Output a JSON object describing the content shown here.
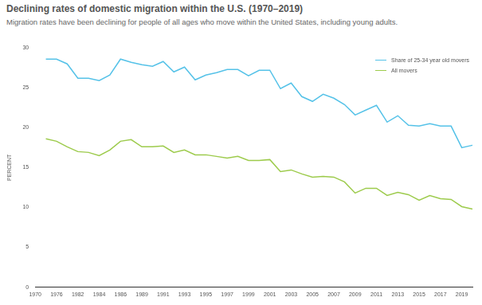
{
  "chart_data": {
    "type": "line",
    "title": "Declining rates of domestic migration within the U.S. (1970–2019)",
    "subtitle": "Migration rates have been declining for people of all ages who move within the United States, including young adults.",
    "y_label": "PERCENT",
    "categories": [
      "1970",
      null,
      "1976",
      null,
      "1982",
      null,
      "1984",
      null,
      "1986",
      null,
      "1989",
      null,
      "1991",
      null,
      "1993",
      null,
      "1995",
      null,
      "1997",
      null,
      "1999",
      null,
      "2001",
      null,
      "2003",
      null,
      "2005",
      null,
      "2007",
      null,
      "2009",
      null,
      "2011",
      null,
      "2013",
      null,
      "2015",
      null,
      "2017",
      null,
      "2019",
      null
    ],
    "series": [
      {
        "name": "Share of 25-34 year old movers",
        "color": "#55c2e8",
        "values": [
          null,
          28.6,
          28.6,
          28.0,
          26.2,
          26.2,
          25.9,
          26.6,
          28.6,
          28.2,
          27.9,
          27.7,
          28.3,
          27.0,
          27.6,
          26.0,
          26.6,
          26.9,
          27.3,
          27.3,
          26.5,
          27.2,
          27.2,
          24.9,
          25.6,
          23.9,
          23.3,
          24.2,
          23.7,
          22.9,
          21.6,
          22.2,
          22.8,
          20.7,
          21.5,
          20.3,
          20.2,
          20.5,
          20.2,
          20.2,
          17.5,
          17.8
        ]
      },
      {
        "name": "All movers",
        "color": "#9dcb4c",
        "values": [
          null,
          18.6,
          18.3,
          17.6,
          17.0,
          16.9,
          16.5,
          17.2,
          18.3,
          18.5,
          17.6,
          17.6,
          17.7,
          16.9,
          17.2,
          16.6,
          16.6,
          16.4,
          16.2,
          16.4,
          15.9,
          15.9,
          16.0,
          14.5,
          14.7,
          14.2,
          13.8,
          13.9,
          13.8,
          13.2,
          11.8,
          12.4,
          12.4,
          11.5,
          11.9,
          11.6,
          10.9,
          11.5,
          11.1,
          11.0,
          10.1,
          9.8
        ]
      }
    ],
    "ylim": [
      0,
      30
    ],
    "yticks": [
      0,
      5,
      10,
      15,
      20,
      25,
      30
    ],
    "grid": false,
    "legend": "upper right",
    "marker": "none",
    "line_style": "solid"
  }
}
